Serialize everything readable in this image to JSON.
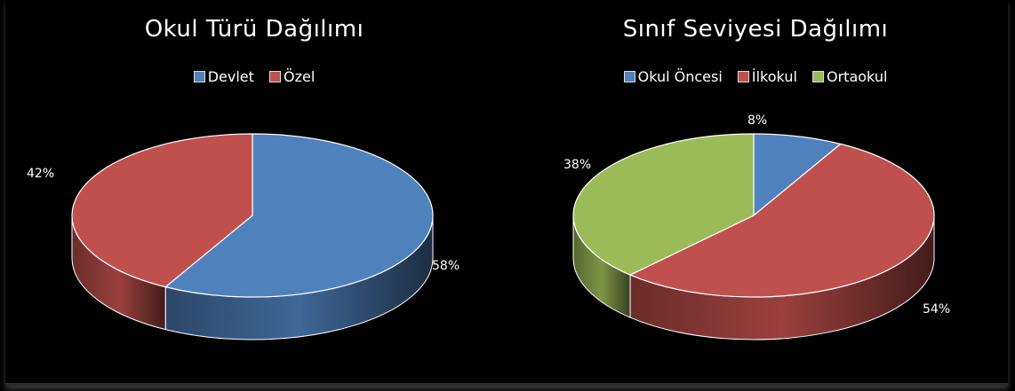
{
  "chart_data": [
    {
      "type": "pie",
      "title": "Okul Türü Dağılımı",
      "categories": [
        "Devlet",
        "Özel"
      ],
      "values": [
        58,
        42
      ],
      "labels": [
        "58%",
        "42%"
      ],
      "colors": [
        "#4F81BD",
        "#C0504D"
      ],
      "legend": "top"
    },
    {
      "type": "pie",
      "title": "Sınıf Seviyesi Dağılımı",
      "categories": [
        "Okul Öncesi",
        "İlkokul",
        "Ortaokul"
      ],
      "values": [
        8,
        54,
        38
      ],
      "labels": [
        "8%",
        "54%",
        "38%"
      ],
      "colors": [
        "#4F81BD",
        "#C0504D",
        "#9BBB59"
      ],
      "legend": "top"
    }
  ]
}
